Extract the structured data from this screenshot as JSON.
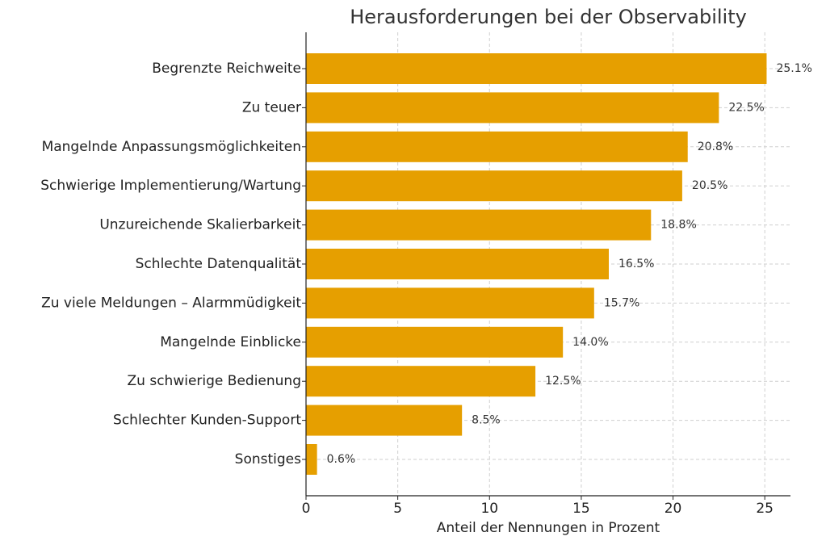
{
  "chart_data": {
    "type": "hbar",
    "title": "Herausforderungen bei der Observability",
    "xlabel": "Anteil der Nennungen in Prozent",
    "categories": [
      "Begrenzte Reichweite",
      "Zu teuer",
      "Mangelnde Anpassungsmöglichkeiten",
      "Schwierige Implementierung/Wartung",
      "Unzureichende Skalierbarkeit",
      "Schlechte Datenqualität",
      "Zu viele Meldungen – Alarmmüdigkeit",
      "Mangelnde Einblicke",
      "Zu schwierige Bedienung",
      "Schlechter Kunden-Support",
      "Sonstiges"
    ],
    "values": [
      25.1,
      22.5,
      20.8,
      20.5,
      18.8,
      16.5,
      15.7,
      14.0,
      12.5,
      8.5,
      0.6
    ],
    "value_labels": [
      "25.1%",
      "22.5%",
      "20.8%",
      "20.5%",
      "18.8%",
      "16.5%",
      "15.7%",
      "14.0%",
      "12.5%",
      "8.5%",
      "0.6%"
    ],
    "color": "#e69f00",
    "xlim": [
      0,
      26.4
    ],
    "xticks": [
      0,
      5,
      10,
      15,
      20,
      25
    ],
    "grid": true
  }
}
